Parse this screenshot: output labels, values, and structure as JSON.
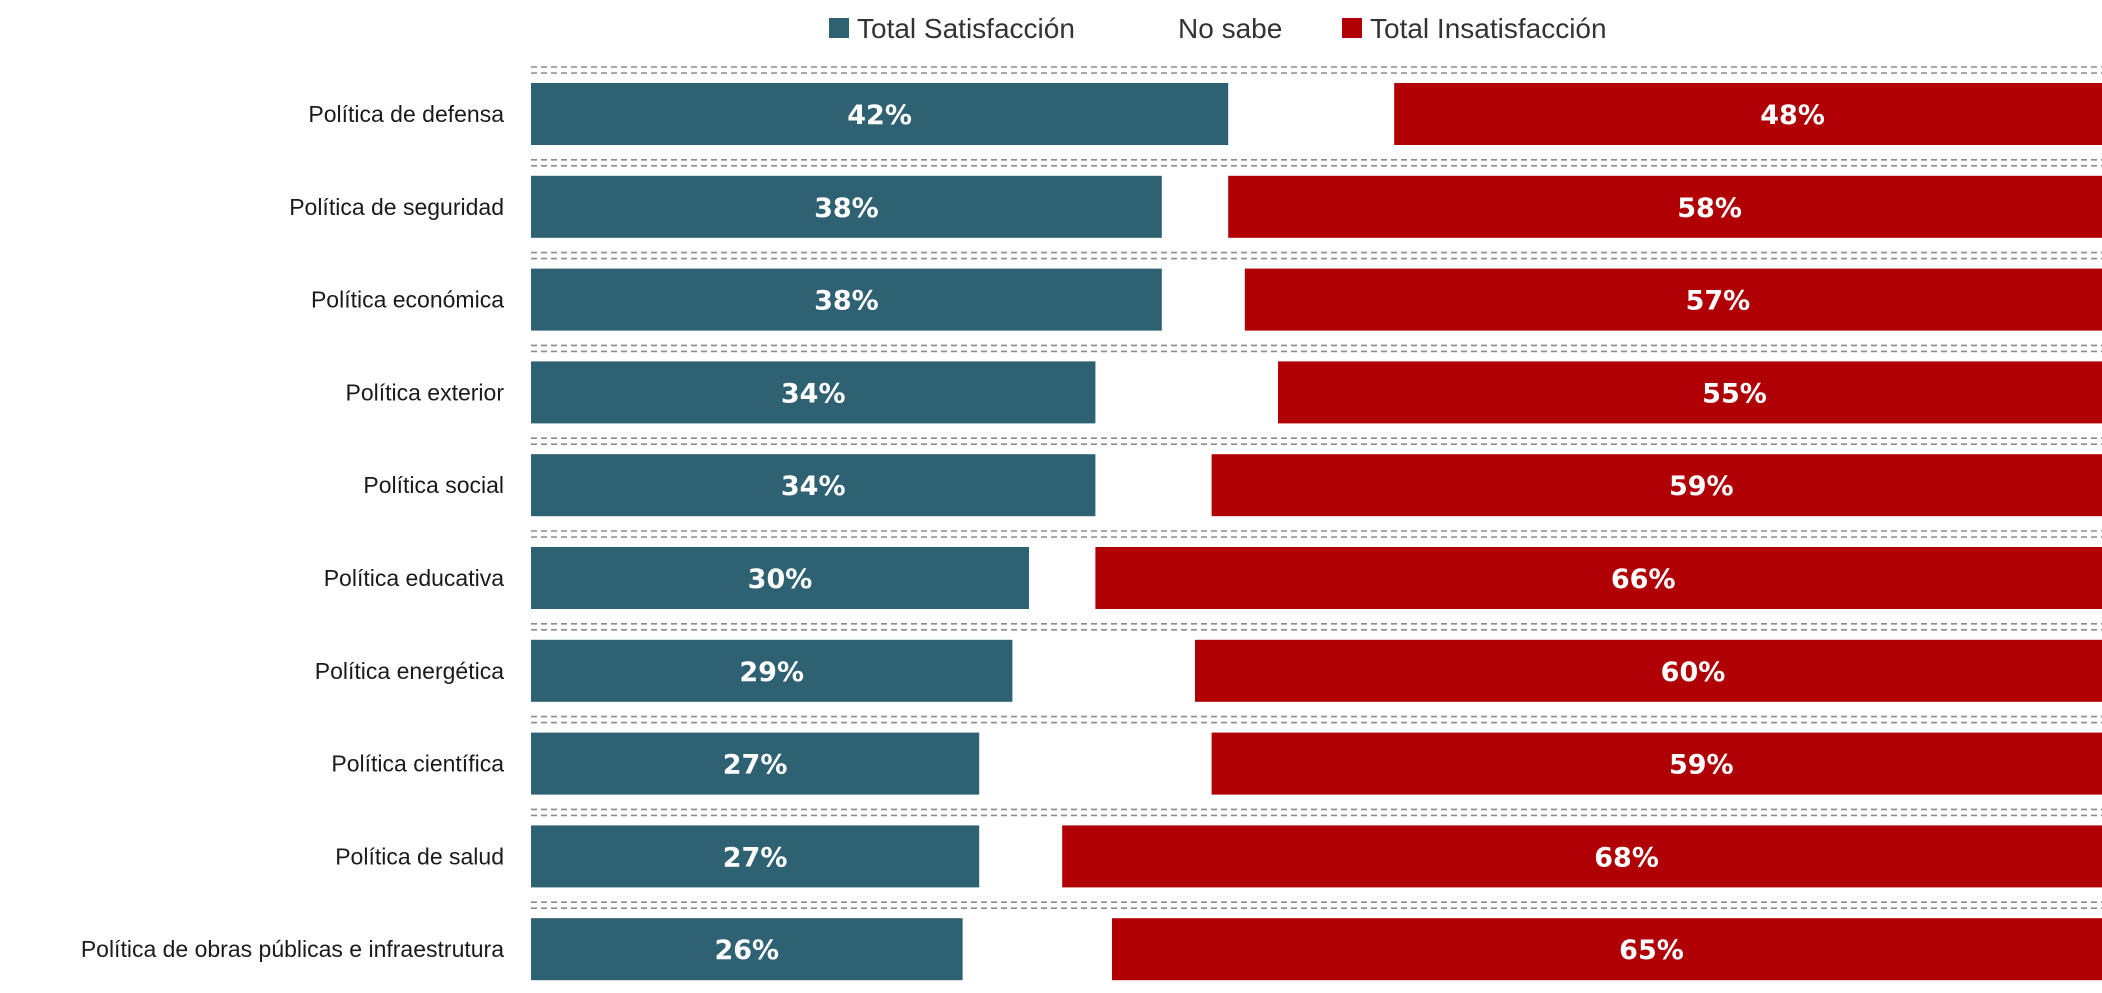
{
  "chart_data": {
    "type": "bar",
    "orientation": "horizontal",
    "stacked": true,
    "categories": [
      "Política de defensa",
      "Política de seguridad",
      "Política económica",
      "Política exterior",
      "Política social",
      "Política educativa",
      "Política energética",
      "Política científica",
      "Política de salud",
      "Política de obras públicas e infraestrutura"
    ],
    "series": [
      {
        "name": "Total Satisfacción",
        "color": "#2e6172",
        "values": [
          42,
          38,
          38,
          34,
          34,
          30,
          29,
          27,
          27,
          26
        ],
        "labels": [
          "42%",
          "38%",
          "38%",
          "34%",
          "34%",
          "30%",
          "29%",
          "27%",
          "27%",
          "26%"
        ]
      },
      {
        "name": "No sabe",
        "color": "#ffffff",
        "values": [
          10,
          4,
          5,
          11,
          7,
          4,
          11,
          14,
          5,
          9
        ],
        "labels": []
      },
      {
        "name": "Total Insatisfacción",
        "color": "#b00005",
        "values": [
          48,
          58,
          57,
          55,
          59,
          66,
          60,
          59,
          68,
          65
        ],
        "labels": [
          "48%",
          "58%",
          "57%",
          "55%",
          "59%",
          "66%",
          "60%",
          "59%",
          "68%",
          "65%"
        ]
      }
    ],
    "xlim": [
      0,
      100
    ],
    "legend": {
      "position": "top"
    },
    "grid": "dashed horizontal separators"
  }
}
